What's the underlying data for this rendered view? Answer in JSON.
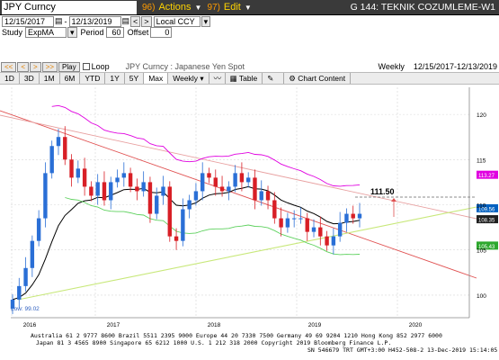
{
  "title_bar": {
    "ticker": "JPY Curncy",
    "actions_code": "96)",
    "actions_label": "Actions",
    "edit_code": "97)",
    "edit_label": "Edit",
    "graph_title": "G 144: TEKNIK COZUMLEME-W1"
  },
  "date_row": {
    "start_date": "12/15/2017",
    "end_date": "12/13/2019",
    "back_btn": "<",
    "fwd_btn": ">",
    "currency": "Local CCY"
  },
  "study_row": {
    "study_label": "Study",
    "study_value": "ExpMA",
    "period_label": "Period",
    "period_value": "60",
    "offset_label": "Offset",
    "offset_value": "0"
  },
  "nav_row": {
    "buttons": [
      "<<",
      "<",
      ">",
      ">>"
    ],
    "play_label": "Play",
    "loop_label": "Loop",
    "security_name": "JPY Curncy : Japanese Yen Spot",
    "frequency": "Weekly",
    "range": "12/15/2017-12/13/2019"
  },
  "toolbar": {
    "ranges": [
      "1D",
      "3D",
      "1M",
      "6M",
      "YTD",
      "1Y",
      "5Y",
      "Max"
    ],
    "selected_range": "Max",
    "frequency": "Weekly",
    "table_label": "Table",
    "chart_content_label": "Chart Content"
  },
  "chart": {
    "price_label": "111.50",
    "low_label": "Low: 99.02",
    "x_labels": [
      "2016",
      "2017",
      "2018",
      "2019",
      "2020"
    ],
    "y_labels": [
      "100",
      "105",
      "110",
      "115",
      "120"
    ],
    "right_badges": [
      "113.27",
      "109.56",
      "108.35",
      "105.43"
    ],
    "colors": {
      "up": "#2a6fd6",
      "down": "#d81f26",
      "ema": "#000000",
      "pink_band": "#e000e0",
      "green_line": "#5ed15e",
      "red_trend": "#e05050",
      "light_trend": "#e8a0a0",
      "yellow_trend": "#c8e87a"
    }
  },
  "chart_data": {
    "type": "candlestick",
    "title": "JPY Curncy : Japanese Yen Spot",
    "frequency": "Weekly",
    "x_labels": [
      "2016",
      "2017",
      "2018",
      "2019",
      "2020"
    ],
    "y_ticks": [
      100,
      105,
      110,
      115,
      120
    ],
    "ylim": [
      97.5,
      123
    ],
    "low_annotation": 99.02,
    "target_level": 111.5,
    "last_badges": [
      113.27,
      109.56,
      108.35,
      105.43
    ],
    "series": [
      {
        "name": "price",
        "values": [
          99.5,
          101,
          103,
          106,
          108.5,
          113.5,
          116.5,
          117.5,
          115,
          113,
          114,
          112,
          111,
          112.5,
          110.5,
          112.5,
          113,
          113.5,
          112,
          111.5,
          112.5,
          109,
          111,
          112,
          106.5,
          106,
          109.5,
          110.5,
          111.5,
          113.5,
          113,
          112,
          111.5,
          112,
          113.5,
          112.5,
          113,
          110.5,
          111.5,
          110.5,
          108.5,
          107.5,
          108.5,
          108.5,
          108.5,
          107,
          107.5,
          106.5,
          105.5,
          106.5,
          108,
          109,
          108.5,
          109
        ]
      }
    ]
  },
  "footer": {
    "line1": "Australia 61 2 9777 8600  Brazil 5511 2395 9000  Europe 44 20 7330 7500  Germany 49 69 9204 1210  Hong Kong 852 2977 6000",
    "line2": "Japan 81 3 4565 8900       Singapore 65 6212 1000          U.S. 1 212 318 2000        Copyright 2019 Bloomberg Finance L.P.",
    "line3": "SN 546679 TRT  GMT+3:00 H452-508-2 13-Dec-2019 15:14:05"
  }
}
